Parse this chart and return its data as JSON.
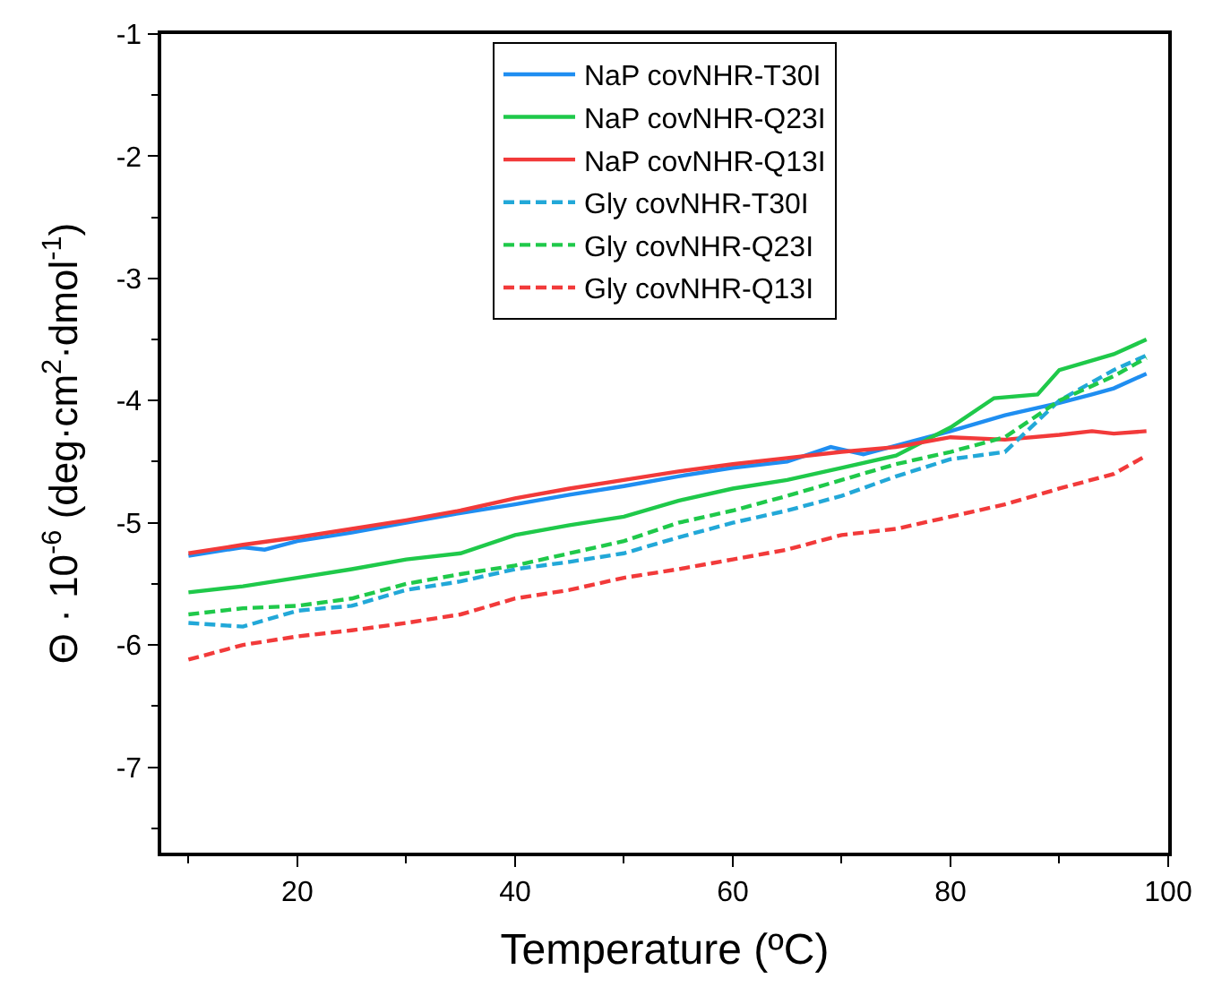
{
  "chart_data": {
    "type": "line",
    "xlabel": "Temperature (ºC)",
    "ylabel": "Θ · 10$^{-6}$ (deg·cm$^{2}$·dmol$^{-1}$)",
    "xlim": [
      7.5,
      100
    ],
    "xticks": [
      20,
      40,
      60,
      80,
      100
    ],
    "ylim": [
      -7.7,
      -1
    ],
    "yticks": [
      -7,
      -6,
      -5,
      -4,
      -3,
      -2,
      -1
    ],
    "legend": "top",
    "marker": "none",
    "series": [
      {
        "name": "NaP covNHR-T30I",
        "color": "#1f8ef1",
        "line_style": "solid",
        "x": [
          10,
          15,
          17,
          20,
          25,
          30,
          35,
          40,
          45,
          50,
          55,
          60,
          65,
          69,
          72,
          80,
          85,
          90,
          93,
          95,
          98
        ],
        "values": [
          -5.27,
          -5.2,
          -5.22,
          -5.15,
          -5.08,
          -5.0,
          -4.92,
          -4.85,
          -4.77,
          -4.7,
          -4.62,
          -4.55,
          -4.5,
          -4.38,
          -4.44,
          -4.25,
          -4.12,
          -4.02,
          -3.95,
          -3.9,
          -3.78
        ]
      },
      {
        "name": "NaP covNHR-Q23I",
        "color": "#1fc94a",
        "line_style": "solid",
        "x": [
          10,
          15,
          20,
          25,
          30,
          35,
          40,
          45,
          50,
          55,
          60,
          65,
          70,
          75,
          80,
          84,
          88,
          90,
          95,
          98
        ],
        "values": [
          -5.57,
          -5.52,
          -5.45,
          -5.38,
          -5.3,
          -5.25,
          -5.1,
          -5.02,
          -4.95,
          -4.82,
          -4.72,
          -4.65,
          -4.55,
          -4.45,
          -4.22,
          -3.98,
          -3.95,
          -3.75,
          -3.62,
          -3.5
        ]
      },
      {
        "name": "NaP covNHR-Q13I",
        "color": "#f23a3a",
        "line_style": "solid",
        "x": [
          10,
          15,
          20,
          25,
          30,
          35,
          40,
          45,
          50,
          55,
          60,
          65,
          70,
          75,
          80,
          85,
          90,
          93,
          95,
          98
        ],
        "values": [
          -5.25,
          -5.18,
          -5.12,
          -5.05,
          -4.98,
          -4.9,
          -4.8,
          -4.72,
          -4.65,
          -4.58,
          -4.52,
          -4.47,
          -4.42,
          -4.38,
          -4.3,
          -4.32,
          -4.28,
          -4.25,
          -4.27,
          -4.25
        ]
      },
      {
        "name": "Gly covNHR-T30I",
        "color": "#22a8d8",
        "line_style": "dashed",
        "x": [
          10,
          15,
          20,
          25,
          30,
          35,
          40,
          45,
          50,
          55,
          60,
          65,
          70,
          75,
          80,
          85,
          90,
          95,
          98
        ],
        "values": [
          -5.82,
          -5.85,
          -5.72,
          -5.68,
          -5.55,
          -5.48,
          -5.38,
          -5.32,
          -5.25,
          -5.12,
          -5.0,
          -4.9,
          -4.78,
          -4.62,
          -4.48,
          -4.42,
          -4.0,
          -3.75,
          -3.63
        ]
      },
      {
        "name": "Gly covNHR-Q23I",
        "color": "#1fc94a",
        "line_style": "dashed",
        "x": [
          10,
          15,
          20,
          25,
          30,
          35,
          40,
          45,
          50,
          55,
          60,
          65,
          70,
          75,
          80,
          85,
          90,
          95,
          98
        ],
        "values": [
          -5.75,
          -5.7,
          -5.68,
          -5.62,
          -5.5,
          -5.42,
          -5.35,
          -5.25,
          -5.15,
          -5.0,
          -4.9,
          -4.78,
          -4.65,
          -4.52,
          -4.42,
          -4.3,
          -4.0,
          -3.8,
          -3.65
        ]
      },
      {
        "name": "Gly covNHR-Q13I",
        "color": "#f23a3a",
        "line_style": "dashed",
        "x": [
          10,
          15,
          20,
          25,
          30,
          35,
          40,
          45,
          50,
          55,
          60,
          65,
          70,
          75,
          80,
          85,
          90,
          95,
          98
        ],
        "values": [
          -6.12,
          -6.0,
          -5.93,
          -5.88,
          -5.82,
          -5.75,
          -5.62,
          -5.55,
          -5.45,
          -5.38,
          -5.3,
          -5.22,
          -5.1,
          -5.05,
          -4.95,
          -4.85,
          -4.72,
          -4.6,
          -4.45
        ]
      }
    ]
  }
}
